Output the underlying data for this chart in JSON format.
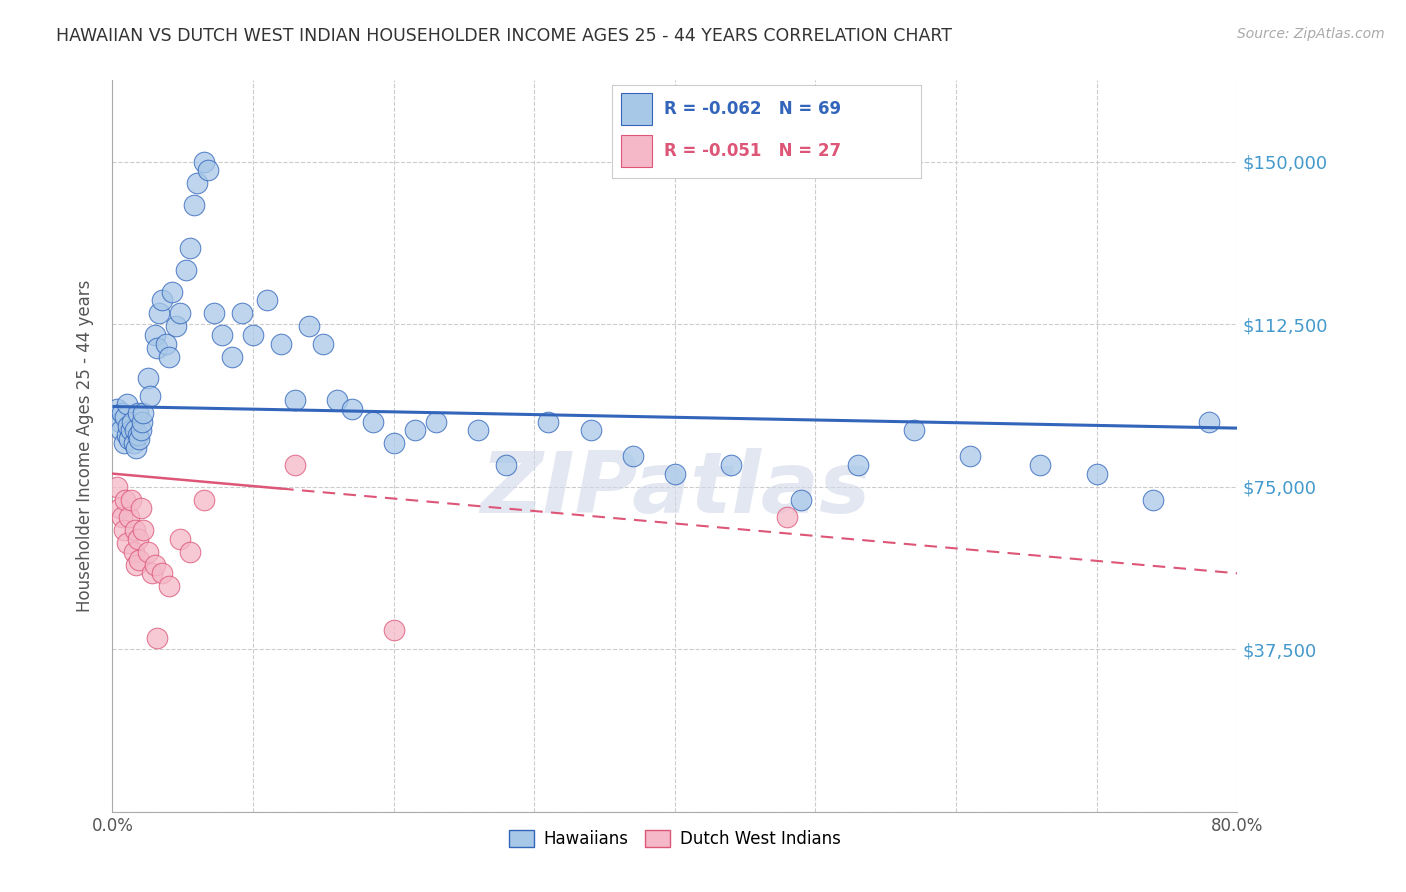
{
  "title": "HAWAIIAN VS DUTCH WEST INDIAN HOUSEHOLDER INCOME AGES 25 - 44 YEARS CORRELATION CHART",
  "source": "Source: ZipAtlas.com",
  "ylabel": "Householder Income Ages 25 - 44 years",
  "xmin": 0.0,
  "xmax": 0.8,
  "ymin": 0,
  "ymax": 168750,
  "yticks": [
    0,
    37500,
    75000,
    112500,
    150000
  ],
  "ytick_labels": [
    "",
    "$37,500",
    "$75,000",
    "$112,500",
    "$150,000"
  ],
  "xticks": [
    0.0,
    0.1,
    0.2,
    0.3,
    0.4,
    0.5,
    0.6,
    0.7,
    0.8
  ],
  "xtick_labels": [
    "0.0%",
    "",
    "",
    "",
    "",
    "",
    "",
    "",
    "80.0%"
  ],
  "watermark": "ZIPatlas",
  "legend_hawaiians": "Hawaiians",
  "legend_dutch": "Dutch West Indians",
  "R_hawaiians": -0.062,
  "N_hawaiians": 69,
  "R_dutch": -0.051,
  "N_dutch": 27,
  "color_hawaiians": "#a8c8e8",
  "color_dutch": "#f4b8c8",
  "color_line_hawaiians": "#3366bb",
  "color_line_dutch": "#dd5577",
  "color_ytick_labels": "#4499cc",
  "color_title": "#333333",
  "background_color": "#ffffff",
  "hawaiians_x": [
    0.003,
    0.005,
    0.006,
    0.007,
    0.008,
    0.009,
    0.01,
    0.01,
    0.011,
    0.012,
    0.013,
    0.014,
    0.015,
    0.016,
    0.017,
    0.018,
    0.018,
    0.019,
    0.02,
    0.021,
    0.022,
    0.025,
    0.027,
    0.03,
    0.032,
    0.033,
    0.035,
    0.038,
    0.04,
    0.042,
    0.045,
    0.048,
    0.052,
    0.055,
    0.058,
    0.06,
    0.065,
    0.068,
    0.072,
    0.078,
    0.085,
    0.092,
    0.1,
    0.11,
    0.12,
    0.13,
    0.14,
    0.15,
    0.16,
    0.17,
    0.185,
    0.2,
    0.215,
    0.23,
    0.26,
    0.28,
    0.31,
    0.34,
    0.37,
    0.4,
    0.44,
    0.49,
    0.53,
    0.57,
    0.61,
    0.66,
    0.7,
    0.74,
    0.78
  ],
  "hawaiians_y": [
    93000,
    90000,
    88000,
    92000,
    85000,
    91000,
    87000,
    94000,
    89000,
    86000,
    88000,
    90000,
    85000,
    88000,
    84000,
    87000,
    92000,
    86000,
    88000,
    90000,
    92000,
    100000,
    96000,
    110000,
    107000,
    115000,
    118000,
    108000,
    105000,
    120000,
    112000,
    115000,
    125000,
    130000,
    140000,
    145000,
    150000,
    148000,
    115000,
    110000,
    105000,
    115000,
    110000,
    118000,
    108000,
    95000,
    112000,
    108000,
    95000,
    93000,
    90000,
    85000,
    88000,
    90000,
    88000,
    80000,
    90000,
    88000,
    82000,
    78000,
    80000,
    72000,
    80000,
    88000,
    82000,
    80000,
    78000,
    72000,
    90000
  ],
  "dutch_x": [
    0.003,
    0.005,
    0.007,
    0.008,
    0.009,
    0.01,
    0.012,
    0.013,
    0.015,
    0.016,
    0.017,
    0.018,
    0.019,
    0.02,
    0.022,
    0.025,
    0.028,
    0.03,
    0.032,
    0.035,
    0.04,
    0.048,
    0.055,
    0.065,
    0.13,
    0.2,
    0.48
  ],
  "dutch_y": [
    75000,
    70000,
    68000,
    65000,
    72000,
    62000,
    68000,
    72000,
    60000,
    65000,
    57000,
    63000,
    58000,
    70000,
    65000,
    60000,
    55000,
    57000,
    40000,
    55000,
    52000,
    63000,
    60000,
    72000,
    80000,
    42000,
    68000
  ],
  "h_line_x0": 0.0,
  "h_line_y0": 93500,
  "h_line_x1": 0.8,
  "h_line_y1": 88500,
  "d_line_x0": 0.0,
  "d_line_y0": 78000,
  "d_line_x1": 0.8,
  "d_line_y1": 55000
}
